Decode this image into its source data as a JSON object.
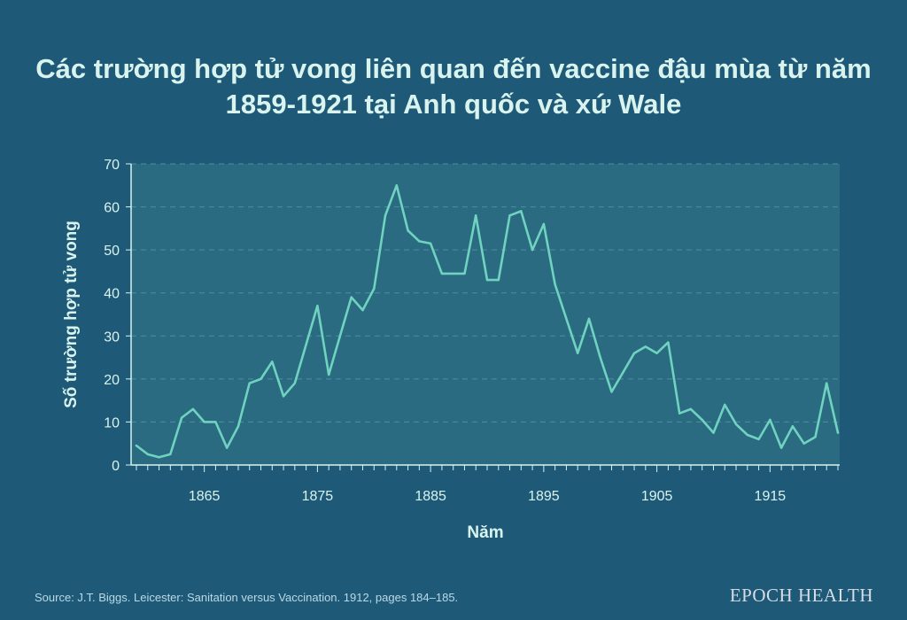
{
  "title": "Các trường hợp tử vong liên quan đến vaccine đậu mùa từ năm 1859-1921 tại Anh quốc và xứ Wale",
  "source": "Source: J.T. Biggs. Leicester: Sanitation versus Vaccination. 1912, pages 184–185.",
  "brand": "EPOCH HEALTH",
  "colors": {
    "background": "#1e5a78",
    "plot_area": "#2a6b82",
    "line": "#6fd3c0",
    "text": "#d9f3ef"
  },
  "chart_data": {
    "type": "line",
    "xlabel": "Năm",
    "ylabel": "Số trường hợp tử vong",
    "xlim": [
      1859,
      1921
    ],
    "ylim": [
      0,
      70
    ],
    "x_ticks": [
      1865,
      1875,
      1885,
      1895,
      1905,
      1915
    ],
    "y_ticks": [
      0,
      10,
      20,
      30,
      40,
      50,
      60,
      70
    ],
    "grid": "horizontal dashed",
    "x": [
      1859,
      1860,
      1861,
      1862,
      1863,
      1864,
      1865,
      1866,
      1867,
      1868,
      1869,
      1870,
      1871,
      1872,
      1873,
      1874,
      1875,
      1876,
      1877,
      1878,
      1879,
      1880,
      1881,
      1882,
      1883,
      1884,
      1885,
      1886,
      1887,
      1888,
      1889,
      1890,
      1891,
      1892,
      1893,
      1894,
      1895,
      1896,
      1897,
      1898,
      1899,
      1900,
      1901,
      1902,
      1903,
      1904,
      1905,
      1906,
      1907,
      1908,
      1909,
      1910,
      1911,
      1912,
      1913,
      1914,
      1915,
      1916,
      1917,
      1918,
      1919,
      1920,
      1921
    ],
    "values": [
      4.5,
      2.5,
      1.8,
      2.5,
      11,
      13,
      10,
      10,
      4,
      9,
      19,
      20,
      24,
      16,
      19,
      28,
      37,
      21,
      30,
      39,
      36,
      41,
      58,
      65,
      54.5,
      52,
      51.5,
      44.5,
      44.5,
      44.5,
      58,
      43,
      43,
      58,
      59,
      50,
      56,
      42,
      34,
      26,
      34,
      25,
      17,
      21.5,
      26,
      27.5,
      26,
      28.5,
      12,
      13,
      10.5,
      7.5,
      14,
      9.5,
      7,
      6,
      10.5,
      4,
      9,
      5,
      6.5,
      19,
      7.5
    ]
  }
}
